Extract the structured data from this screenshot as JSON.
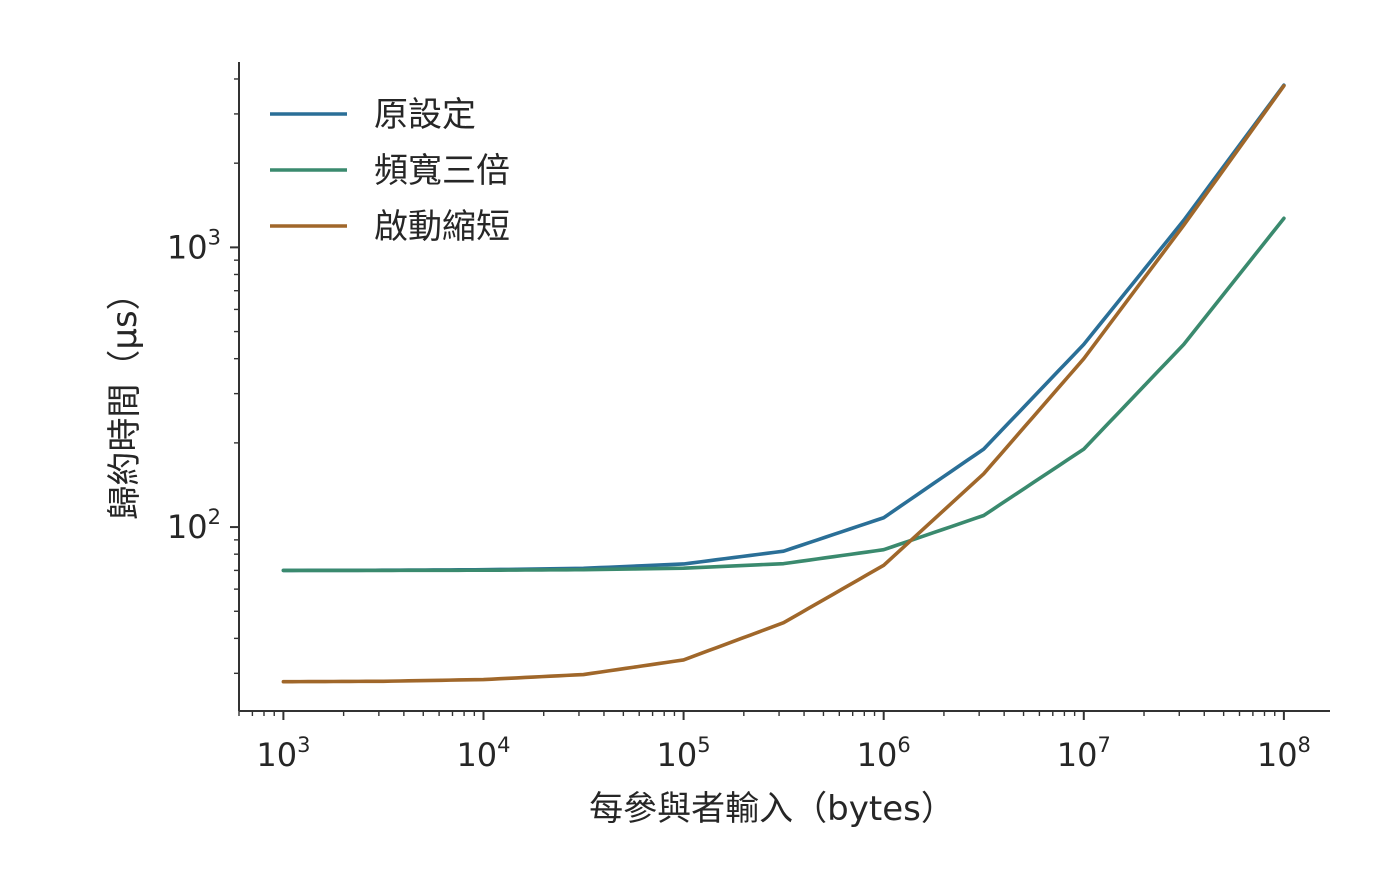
{
  "chart_data": {
    "type": "line",
    "title": "",
    "xlabel": "每參與者輸入（bytes）",
    "ylabel": "歸約時間（μs）",
    "xscale": "log",
    "yscale": "log",
    "xlim": [
      600,
      170000000
    ],
    "ylim": [
      22,
      4600
    ],
    "grid": false,
    "legend_position": "top-left",
    "x_ticks": [
      {
        "base": "10",
        "exp": "3",
        "value": 1000
      },
      {
        "base": "10",
        "exp": "4",
        "value": 10000
      },
      {
        "base": "10",
        "exp": "5",
        "value": 100000
      },
      {
        "base": "10",
        "exp": "6",
        "value": 1000000
      },
      {
        "base": "10",
        "exp": "7",
        "value": 10000000
      },
      {
        "base": "10",
        "exp": "8",
        "value": 100000000
      }
    ],
    "y_ticks": [
      {
        "base": "10",
        "exp": "2",
        "value": 100
      },
      {
        "base": "10",
        "exp": "3",
        "value": 1000
      }
    ],
    "series": [
      {
        "name": "原設定",
        "color": "#2a6f97",
        "x": [
          1000,
          3160,
          10000,
          31600,
          100000,
          316000,
          1000000,
          3160000,
          10000000,
          31600000,
          100000000
        ],
        "y": [
          70,
          70.1,
          70.4,
          71.2,
          73.8,
          82,
          108,
          190,
          450,
          1250,
          3800
        ]
      },
      {
        "name": "頻寬三倍",
        "color": "#3a8a6e",
        "x": [
          1000,
          3160,
          10000,
          31600,
          100000,
          316000,
          1000000,
          3160000,
          10000000,
          31600000,
          100000000
        ],
        "y": [
          70,
          70,
          70.1,
          70.4,
          71.3,
          74,
          83,
          110,
          190,
          450,
          1270
        ]
      },
      {
        "name": "啟動縮短",
        "color": "#a0672a",
        "x": [
          1000,
          3160,
          10000,
          31600,
          100000,
          316000,
          1000000,
          3160000,
          10000000,
          31600000,
          100000000
        ],
        "y": [
          28,
          28.1,
          28.5,
          29.7,
          33.5,
          45.5,
          73,
          155,
          400,
          1200,
          3780
        ]
      }
    ]
  }
}
